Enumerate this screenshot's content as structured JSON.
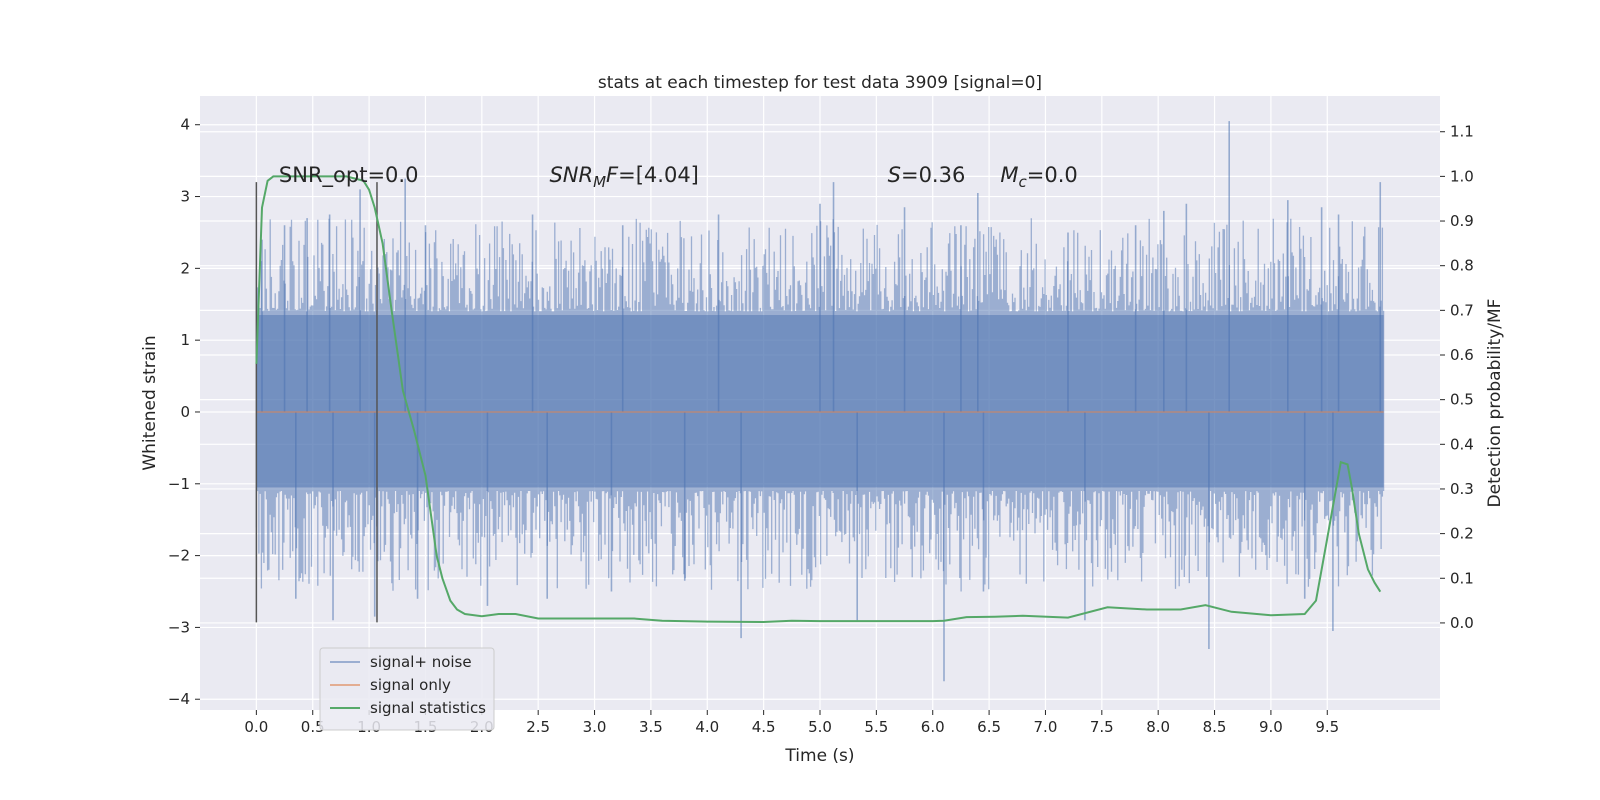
{
  "chart_data": {
    "type": "line",
    "title": "stats at each timestep for test data 3909 [signal=0]",
    "xlabel": "Time (s)",
    "ylabel": "Whitened strain",
    "y2label": "Detection probability/MF",
    "xlim": [
      -0.5,
      10.5
    ],
    "ylim": [
      -4.15,
      4.4
    ],
    "y2lim": [
      -0.195,
      1.18
    ],
    "x_ticks": [
      0.0,
      0.5,
      1.0,
      1.5,
      2.0,
      2.5,
      3.0,
      3.5,
      4.0,
      4.5,
      5.0,
      5.5,
      6.0,
      6.5,
      7.0,
      7.5,
      8.0,
      8.5,
      9.0,
      9.5
    ],
    "x_tick_labels": [
      "0.0",
      "0.5",
      "1.0",
      "1.5",
      "2.0",
      "2.5",
      "3.0",
      "3.5",
      "4.0",
      "4.5",
      "5.0",
      "5.5",
      "6.0",
      "6.5",
      "7.0",
      "7.5",
      "8.0",
      "8.5",
      "9.0",
      "9.5"
    ],
    "y_ticks": [
      -4,
      -3,
      -2,
      -1,
      0,
      1,
      2,
      3,
      4
    ],
    "y_tick_labels": [
      "−4",
      "−3",
      "−2",
      "−1",
      "0",
      "1",
      "2",
      "3",
      "4"
    ],
    "y2_ticks": [
      0.0,
      0.1,
      0.2,
      0.3,
      0.4,
      0.5,
      0.6,
      0.7,
      0.8,
      0.9,
      1.0,
      1.1
    ],
    "y2_tick_labels": [
      "0.0",
      "0.1",
      "0.2",
      "0.3",
      "0.4",
      "0.5",
      "0.6",
      "0.7",
      "0.8",
      "0.9",
      "1.0",
      "1.1"
    ],
    "grid": true,
    "legend_position": "lower-left",
    "series": [
      {
        "name": "signal+ noise",
        "color": "#4c72b0",
        "kind": "noise-band",
        "x_range": [
          0.0,
          10.0
        ],
        "band": [
          -1.05,
          1.35
        ],
        "spikes": [
          {
            "x": 0.05,
            "y": 2.4
          },
          {
            "x": 0.25,
            "y": 2.6
          },
          {
            "x": 0.45,
            "y": 2.7
          },
          {
            "x": 0.65,
            "y": 2.75
          },
          {
            "x": 0.92,
            "y": 3.1
          },
          {
            "x": 1.32,
            "y": 3.25
          },
          {
            "x": 1.5,
            "y": 2.6
          },
          {
            "x": 2.45,
            "y": 2.75
          },
          {
            "x": 3.25,
            "y": 2.6
          },
          {
            "x": 4.1,
            "y": 2.75
          },
          {
            "x": 5.0,
            "y": 2.9
          },
          {
            "x": 5.12,
            "y": 3.2
          },
          {
            "x": 5.75,
            "y": 2.85
          },
          {
            "x": 6.25,
            "y": 2.6
          },
          {
            "x": 6.4,
            "y": 3.05
          },
          {
            "x": 7.2,
            "y": 2.5
          },
          {
            "x": 7.8,
            "y": 2.6
          },
          {
            "x": 8.05,
            "y": 2.8
          },
          {
            "x": 8.25,
            "y": 2.9
          },
          {
            "x": 8.63,
            "y": 4.05
          },
          {
            "x": 9.15,
            "y": 2.95
          },
          {
            "x": 9.45,
            "y": 2.85
          },
          {
            "x": 9.6,
            "y": 2.75
          },
          {
            "x": 9.97,
            "y": 3.2
          },
          {
            "x": 0.35,
            "y": -2.6
          },
          {
            "x": 0.68,
            "y": -2.9
          },
          {
            "x": 1.05,
            "y": -2.85
          },
          {
            "x": 1.43,
            "y": -2.6
          },
          {
            "x": 2.05,
            "y": -2.7
          },
          {
            "x": 2.58,
            "y": -2.6
          },
          {
            "x": 3.15,
            "y": -2.5
          },
          {
            "x": 4.3,
            "y": -3.15
          },
          {
            "x": 5.33,
            "y": -2.9
          },
          {
            "x": 6.1,
            "y": -3.75
          },
          {
            "x": 6.45,
            "y": -2.5
          },
          {
            "x": 7.35,
            "y": -2.9
          },
          {
            "x": 8.45,
            "y": -3.3
          },
          {
            "x": 9.3,
            "y": -2.6
          },
          {
            "x": 9.55,
            "y": -3.05
          },
          {
            "x": 3.8,
            "y": -2.35
          }
        ]
      },
      {
        "name": "signal only",
        "color": "#dd8452",
        "x": [
          0.0,
          10.0
        ],
        "y": [
          0.0,
          0.0
        ]
      },
      {
        "name": "signal statistics",
        "color": "#55a868",
        "axis": "right",
        "x": [
          0.0,
          0.05,
          0.1,
          0.15,
          0.25,
          0.4,
          0.6,
          0.8,
          0.95,
          1.0,
          1.05,
          1.12,
          1.2,
          1.3,
          1.4,
          1.5,
          1.6,
          1.65,
          1.72,
          1.78,
          1.85,
          2.0,
          2.15,
          2.3,
          2.5,
          3.0,
          3.35,
          3.6,
          4.0,
          4.5,
          4.75,
          5.0,
          6.0,
          6.1,
          6.3,
          6.55,
          6.8,
          7.2,
          7.55,
          7.9,
          8.2,
          8.42,
          8.65,
          9.0,
          9.3,
          9.4,
          9.5,
          9.62,
          9.68,
          9.72,
          9.78,
          9.86,
          9.92,
          9.97
        ],
        "y": [
          0.58,
          0.93,
          0.99,
          1.0,
          1.0,
          1.0,
          1.0,
          1.0,
          0.99,
          0.97,
          0.93,
          0.85,
          0.7,
          0.52,
          0.43,
          0.33,
          0.15,
          0.1,
          0.05,
          0.03,
          0.02,
          0.015,
          0.02,
          0.02,
          0.01,
          0.01,
          0.01,
          0.005,
          0.003,
          0.002,
          0.005,
          0.004,
          0.004,
          0.005,
          0.013,
          0.014,
          0.016,
          0.012,
          0.035,
          0.03,
          0.03,
          0.04,
          0.025,
          0.017,
          0.02,
          0.05,
          0.19,
          0.36,
          0.355,
          0.3,
          0.2,
          0.12,
          0.09,
          0.07
        ]
      }
    ],
    "vlines": [
      0.0,
      1.07
    ],
    "annotations": [
      {
        "x": 0.2,
        "y": 3.2,
        "parts": [
          {
            "t": "SNR_opt=0.0",
            "i": false
          }
        ]
      },
      {
        "x": 2.6,
        "y": 3.2,
        "parts": [
          {
            "t": "SNR",
            "i": true
          },
          {
            "t": "M",
            "i": true,
            "sub": true
          },
          {
            "t": "F",
            "i": true
          },
          {
            "t": "=[4.04]",
            "i": false
          }
        ]
      },
      {
        "x": 5.6,
        "y": 3.2,
        "parts": [
          {
            "t": "S",
            "i": true
          },
          {
            "t": "=0.36",
            "i": false
          }
        ]
      },
      {
        "x": 6.6,
        "y": 3.2,
        "parts": [
          {
            "t": "M",
            "i": true
          },
          {
            "t": "c",
            "i": true,
            "sub": true
          },
          {
            "t": "=0.0",
            "i": false
          }
        ]
      }
    ]
  }
}
